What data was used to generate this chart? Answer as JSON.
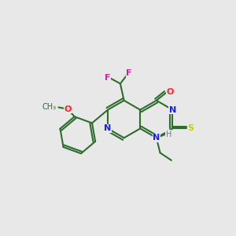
{
  "background_color": "#e8e8e8",
  "bond_color": "#2d6e2d",
  "bond_width": 1.5,
  "atom_colors": {
    "N": "#1a1aff",
    "O": "#ff2222",
    "S": "#cccc00",
    "F": "#cc22aa",
    "H": "#777777",
    "C": "#2d6e2d"
  },
  "figsize": [
    3.0,
    3.0
  ],
  "dpi": 100,
  "L": 0.082
}
